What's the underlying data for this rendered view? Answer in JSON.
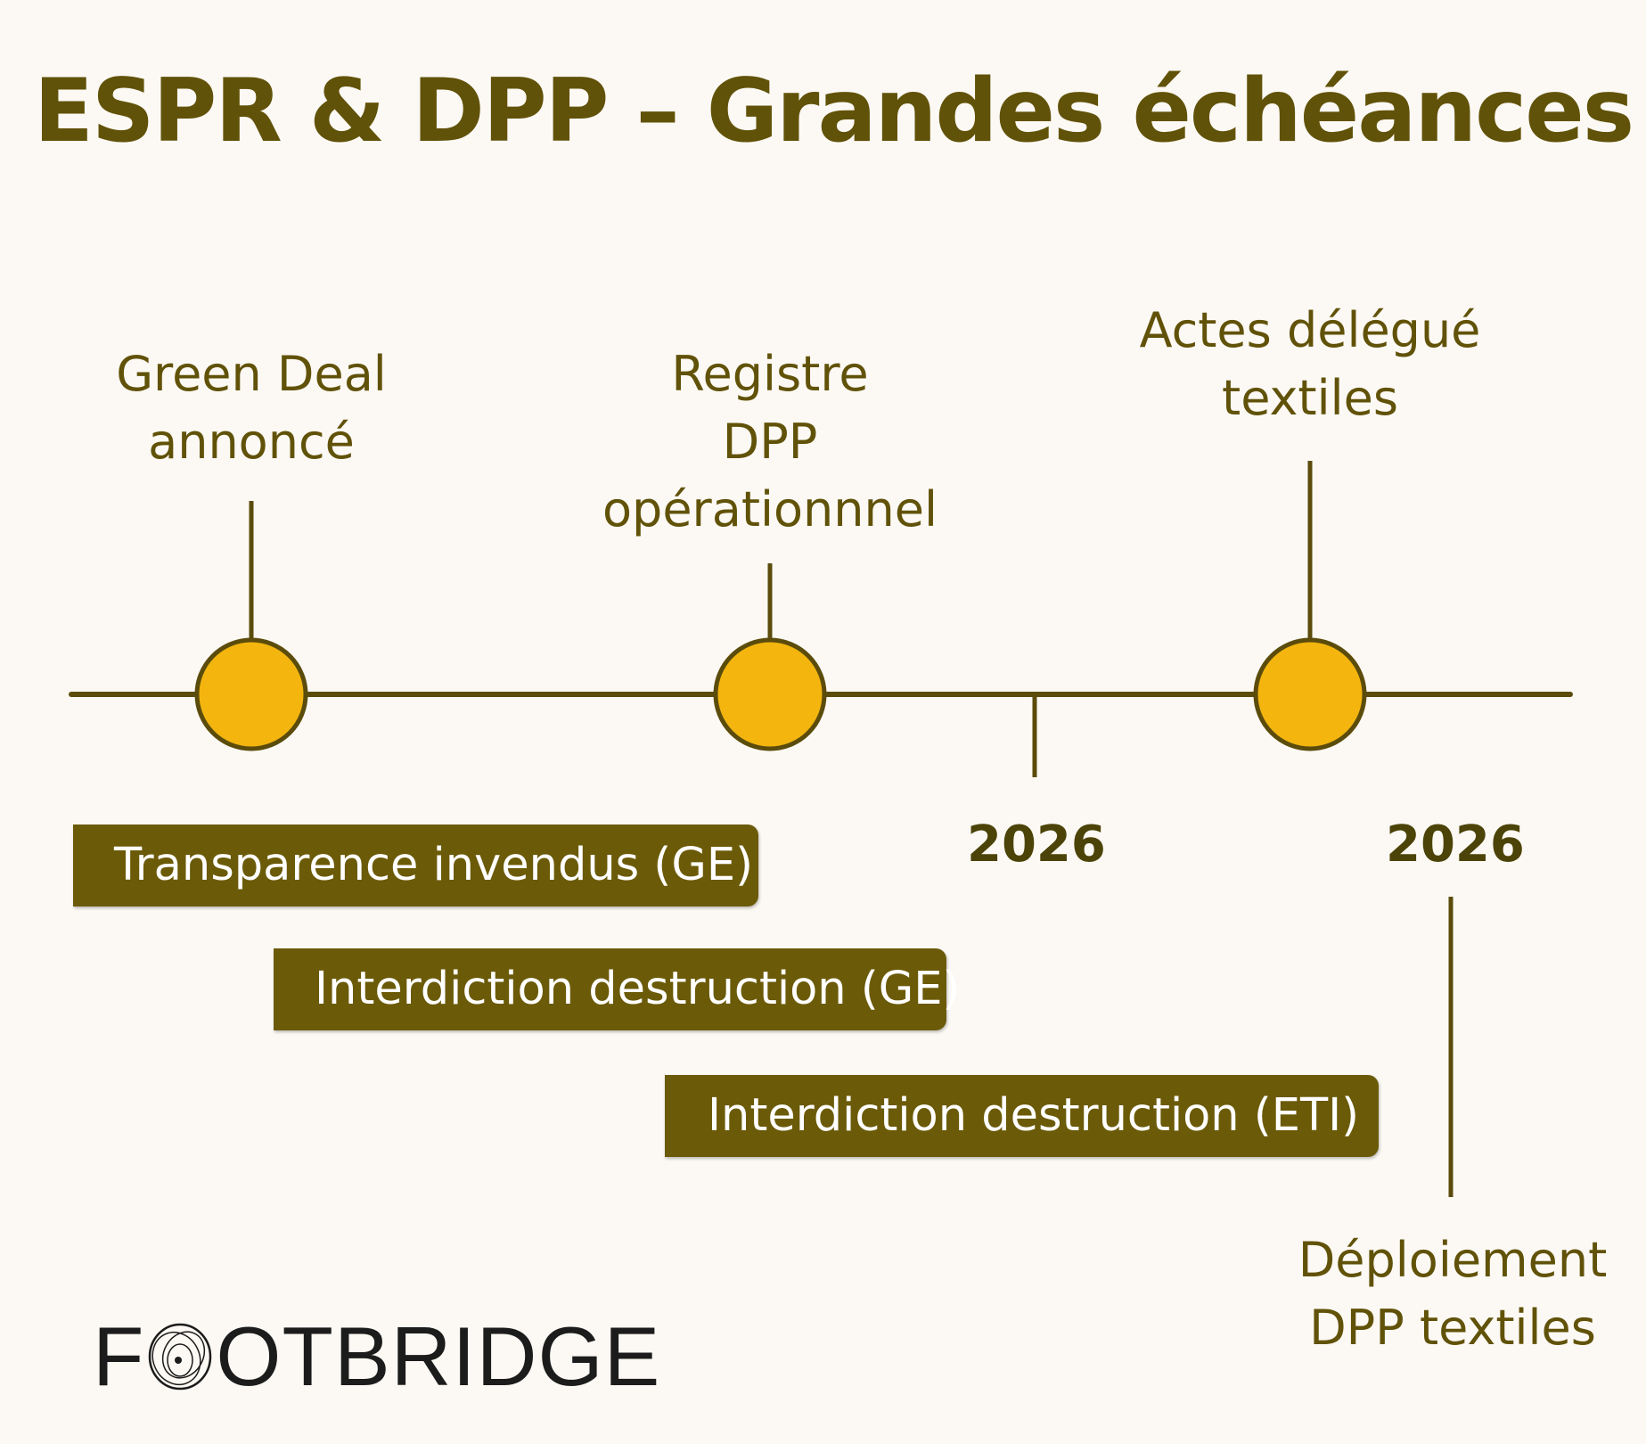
{
  "title": "ESPR & DPP – Grandes échéances",
  "colors": {
    "background": "#fcf9f4",
    "text": "#615209",
    "line": "#5b4c0c",
    "milestone_fill": "#f3b50e",
    "bar_fill": "#6b5a08",
    "bar_text": "#ffffff",
    "logo": "#1c1c1c"
  },
  "milestones": [
    {
      "label_lines": [
        "Green Deal",
        "annoncé"
      ]
    },
    {
      "label_lines": [
        "Registre",
        "DPP",
        "opérationnnel"
      ]
    },
    {
      "label_lines": [
        "Actes délégué",
        "textiles"
      ]
    }
  ],
  "year_markers": [
    {
      "year": "2026"
    },
    {
      "year": "2026"
    }
  ],
  "bars": [
    {
      "label": "Transparence invendus (GE)"
    },
    {
      "label": "Interdiction destruction (GE)"
    },
    {
      "label": "Interdiction destruction (ETI)"
    }
  ],
  "bottom_label_lines": [
    "Déploiement",
    "DPP textiles"
  ],
  "logo": {
    "text_before": "F",
    "text_after": "OTBRIDGE",
    "full_text": "FOOTBRIDGE",
    "icon": "circle-knot-icon"
  }
}
